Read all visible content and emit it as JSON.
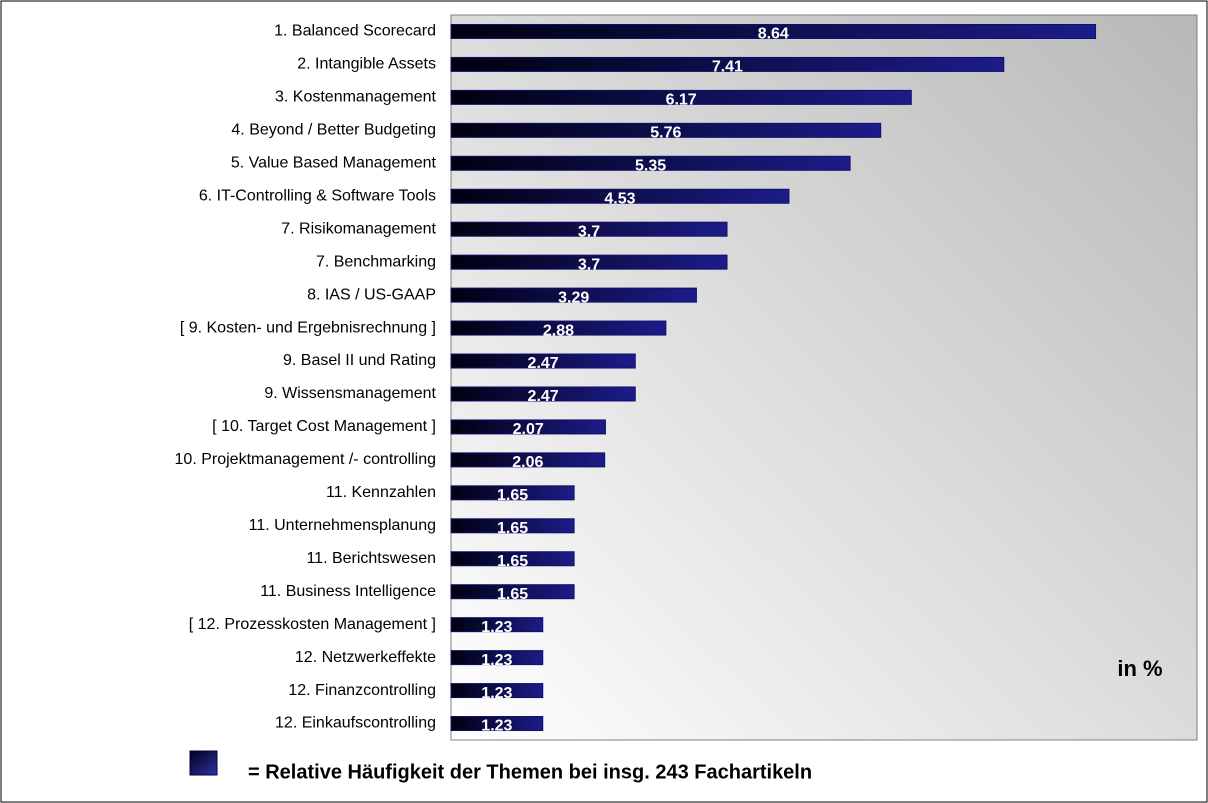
{
  "chart_data": {
    "type": "bar",
    "orientation": "horizontal",
    "categories": [
      "1.  Balanced Scorecard",
      "2.  Intangible Assets",
      "3.  Kostenmanagement",
      "4.  Beyond / Better Budgeting",
      "5.  Value Based Management",
      "6. IT-Controlling & Software Tools",
      "7.  Risikomanagement",
      "7.  Benchmarking",
      "8.  IAS / US-GAAP",
      "[ 9. Kosten- und Ergebnisrechnung ]",
      "9.  Basel II und Rating",
      "9.  Wissensmanagement",
      "[ 10.  Target Cost Management ]",
      "10.  Projektmanagement /- controlling",
      "11.  Kennzahlen",
      "11.  Unternehmensplanung",
      "11. Berichtswesen",
      "11. Business Intelligence",
      "[  12.  Prozesskosten Management ]",
      "12. Netzwerkeffekte",
      "12.  Finanzcontrolling",
      "12.  Einkaufscontrolling"
    ],
    "values": [
      8.64,
      7.41,
      6.17,
      5.76,
      5.35,
      4.53,
      3.7,
      3.7,
      3.29,
      2.88,
      2.47,
      2.47,
      2.07,
      2.06,
      1.65,
      1.65,
      1.65,
      1.65,
      1.23,
      1.23,
      1.23,
      1.23
    ],
    "color": "#10106a",
    "xlim": [
      0,
      10
    ],
    "unit_note": "in %",
    "legend": "= Relative Häufigkeit der Themen bei insg. 243 Fachartikeln"
  }
}
